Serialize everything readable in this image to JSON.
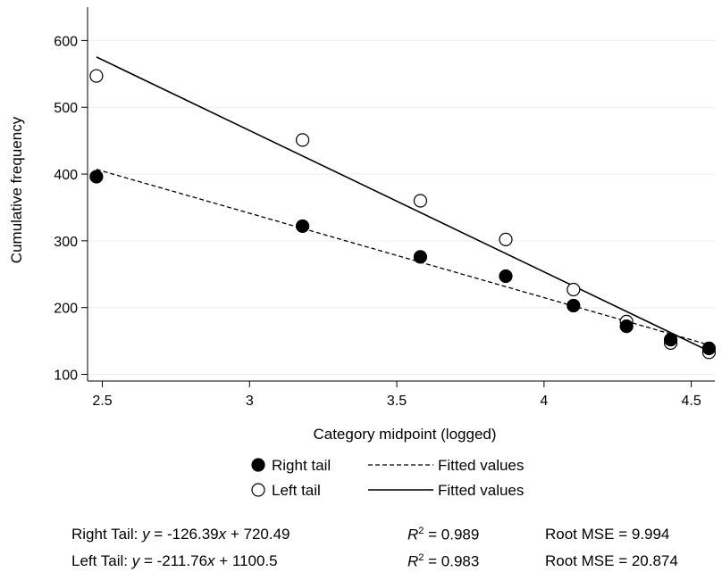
{
  "chart_data": {
    "type": "scatter",
    "title": "",
    "xlabel": "Category midpoint (logged)",
    "ylabel": "Cumulative frequency",
    "xlim": [
      2.45,
      4.58
    ],
    "ylim": [
      90,
      650
    ],
    "xticks": [
      2.5,
      3,
      3.5,
      4,
      4.5
    ],
    "xtick_labels": [
      "2.5",
      "3",
      "3.5",
      "4",
      "4.5"
    ],
    "yticks": [
      100,
      200,
      300,
      400,
      500,
      600
    ],
    "ytick_labels": [
      "100",
      "200",
      "300",
      "400",
      "500",
      "600"
    ],
    "grid": "horizontal",
    "series": [
      {
        "name": "Right tail",
        "marker": "filled-circle",
        "color": "#000000",
        "points": [
          {
            "x": 2.48,
            "y": 396
          },
          {
            "x": 3.18,
            "y": 322
          },
          {
            "x": 3.58,
            "y": 276
          },
          {
            "x": 3.87,
            "y": 247
          },
          {
            "x": 4.1,
            "y": 203
          },
          {
            "x": 4.28,
            "y": 172
          },
          {
            "x": 4.43,
            "y": 152
          },
          {
            "x": 4.56,
            "y": 139
          }
        ]
      },
      {
        "name": "Left tail",
        "marker": "open-circle",
        "color": "#000000",
        "points": [
          {
            "x": 2.48,
            "y": 547
          },
          {
            "x": 3.18,
            "y": 451
          },
          {
            "x": 3.58,
            "y": 360
          },
          {
            "x": 3.87,
            "y": 302
          },
          {
            "x": 4.1,
            "y": 227
          },
          {
            "x": 4.28,
            "y": 179
          },
          {
            "x": 4.43,
            "y": 147
          },
          {
            "x": 4.56,
            "y": 133
          }
        ]
      }
    ],
    "fits": [
      {
        "name": "Fitted values",
        "of": "Right tail",
        "style": "dashed",
        "slope": -126.39,
        "intercept": 720.49,
        "x_range": [
          2.48,
          4.56
        ]
      },
      {
        "name": "Fitted values",
        "of": "Left tail",
        "style": "solid",
        "slope": -211.76,
        "intercept": 1100.5,
        "x_range": [
          2.48,
          4.56
        ]
      }
    ],
    "legend": {
      "placement": "bottom",
      "items": [
        {
          "marker_label": "Right tail",
          "line_label": "Fitted values",
          "marker": "filled-circle",
          "line": "dashed"
        },
        {
          "marker_label": "Left tail",
          "line_label": "Fitted values",
          "marker": "open-circle",
          "line": "solid"
        }
      ]
    }
  },
  "stats": {
    "right": {
      "label": "Right Tail:",
      "eq_y": "y",
      "eq_mid": " = -126.39",
      "eq_x": "x",
      "eq_end": " + 720.49",
      "r_letter": "R",
      "r_sup": "2",
      "r_value": " = 0.989",
      "rmse": "Root MSE = 9.994"
    },
    "left": {
      "label": "Left Tail:",
      "eq_y": "y",
      "eq_mid": " = -211.76",
      "eq_x": "x",
      "eq_end": " + 1100.5",
      "r_letter": "R",
      "r_sup": "2",
      "r_value": " = 0.983",
      "rmse": "Root MSE = 20.874"
    }
  }
}
